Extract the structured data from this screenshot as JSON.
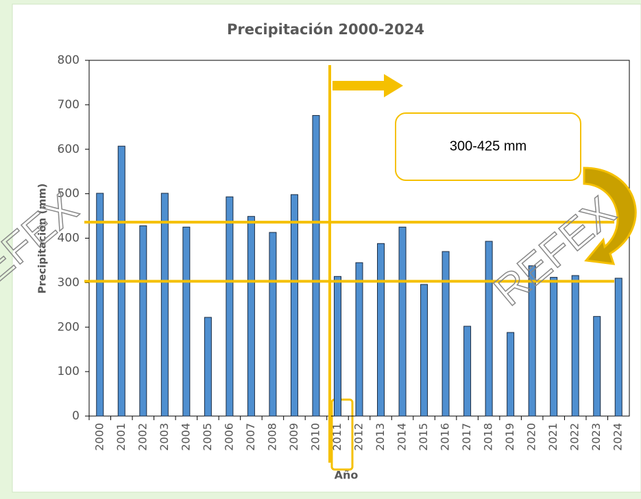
{
  "chart_data": {
    "type": "bar",
    "title": "Precipitación 2000-2024",
    "x_label": "Año",
    "y_label": "Precipitación (mm)",
    "categories": [
      "2000",
      "2001",
      "2002",
      "2003",
      "2004",
      "2005",
      "2006",
      "2007",
      "2008",
      "2009",
      "2010",
      "2011",
      "2012",
      "2013",
      "2014",
      "2015",
      "2016",
      "2017",
      "2018",
      "2019",
      "2020",
      "2021",
      "2022",
      "2023",
      "2024"
    ],
    "values": [
      501,
      607,
      428,
      501,
      425,
      222,
      493,
      449,
      413,
      498,
      676,
      314,
      345,
      388,
      425,
      296,
      370,
      202,
      393,
      188,
      338,
      312,
      316,
      224,
      310
    ],
    "color": "#4f8fd0",
    "ylim": [
      0,
      800
    ],
    "yticks": [
      0,
      100,
      200,
      300,
      400,
      500,
      600,
      700,
      800
    ],
    "grid": false,
    "reference_lines": [
      436,
      303
    ],
    "reference_color": "#f5c000",
    "annotation": "300-425 mm",
    "watermark": "REFEX"
  }
}
